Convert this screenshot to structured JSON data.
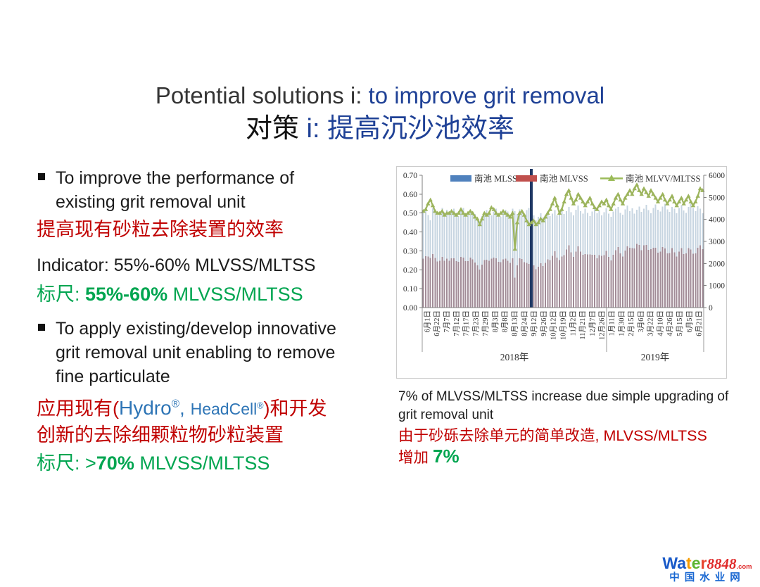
{
  "colors": {
    "title_blue": "#1f4196",
    "text_red": "#C00000",
    "text_green": "#00A550",
    "brand_blue": "#2E75B6"
  },
  "slide": {
    "title_en_dark": "Potential solutions i: ",
    "title_en_blue": "to improve grit removal",
    "title_cn_dark": "对策 ",
    "title_cn_blue": "i: 提高沉沙池效率"
  },
  "left_column": {
    "bullet1": "To improve the performance of\nexisting grit removal unit",
    "red1": "提高现有砂粒去除装置的效率",
    "indicator": "Indicator: 55%-60% MLVSS/MLTSS",
    "scale1": {
      "prefix": "标尺: ",
      "bold": "55%-60%",
      "suffix": " MLVSS/MLTSS"
    },
    "bullet2": "To apply existing/develop innovative\ngrit removal unit enabling to remove\nfine particulate",
    "red2": {
      "pre": "应用现有(",
      "hydro": "Hydro",
      "hydro_reg": "®",
      "comma": ", ",
      "headcell": "HeadCell",
      "headcell_reg": "®",
      "post": ")和开发",
      "line2": "创新的去除细颗粒物砂粒装置"
    },
    "scale2": {
      "prefix": "标尺: >",
      "bold": "70%",
      "suffix": " MLVSS/MLTSS"
    }
  },
  "caption": {
    "en": "7% of MLVSS/MLTSS increase due simple upgrading of\ngrit removal unit",
    "cn_line1": "由于砂砾去除单元的简单改造, MLVSS/MLTSS",
    "cn_line2_pre": "增加 ",
    "cn_line2_green": "7%"
  },
  "logo": {
    "letters": [
      [
        "W",
        "#1859c8"
      ],
      [
        "a",
        "#1859c8"
      ],
      [
        "t",
        "#f59b00"
      ],
      [
        "e",
        "#5cb531"
      ],
      [
        "r",
        "#e8412c"
      ]
    ],
    "number": "8848",
    "dotcom": ".com",
    "cn": "中国水业网",
    "cn_color": "#1766d1"
  },
  "chart_data": {
    "type": "bar+line",
    "legend": [
      {
        "label": "南池 MLSS",
        "type": "bar",
        "color": "#4F81BD"
      },
      {
        "label": "南池 MLVSS",
        "type": "bar",
        "color": "#C0504D"
      },
      {
        "label": "南池 MLVV/MLTSS",
        "type": "line",
        "color": "#9BBB59"
      }
    ],
    "left_axis": {
      "min": 0,
      "max": 0.7,
      "ticks": [
        "0.00",
        "0.10",
        "0.20",
        "0.30",
        "0.40",
        "0.50",
        "0.60",
        "0.70"
      ]
    },
    "right_axis": {
      "min": 0,
      "max": 6000,
      "ticks": [
        "0",
        "1000",
        "2000",
        "3000",
        "4000",
        "5000",
        "6000"
      ]
    },
    "x_tick_labels": [
      "6月1日",
      "6月22日",
      "7月7日",
      "7月12日",
      "7月17日",
      "7月23日",
      "7月29日",
      "8月3日",
      "8月8日",
      "8月13日",
      "8月24日",
      "9月12日",
      "9月26日",
      "10月12日",
      "10月19日",
      "11月2日",
      "11月21日",
      "12月7日",
      "12月26日",
      "1月11日",
      "1月30日",
      "2月15日",
      "3月6日",
      "3月22日",
      "4月10日",
      "4月26日",
      "5月15日",
      "6月5日",
      "6月21日"
    ],
    "year_groups": [
      {
        "label": "2018年",
        "from_label": 0,
        "to_label": 18
      },
      {
        "label": "2019年",
        "from_label": 19,
        "to_label": 28
      }
    ],
    "divider_bar_index": 46,
    "divider_color": "#1F3864",
    "bar_colors": {
      "mlss": "#c7d5e1",
      "mlvss": "#a18b97"
    },
    "line_color": "#9CB45C",
    "series": {
      "mlss": [
        4350,
        4480,
        4200,
        3950,
        4500,
        4420,
        4180,
        4260,
        4510,
        4330,
        4440,
        4240,
        4390,
        4480,
        4300,
        4150,
        4420,
        4520,
        4280,
        4190,
        4460,
        4350,
        4240,
        4080,
        3920,
        4150,
        4310,
        4420,
        4260,
        4180,
        4350,
        4490,
        4230,
        4120,
        4300,
        4440,
        4350,
        4230,
        4480,
        4380,
        4250,
        4460,
        4320,
        4200,
        4420,
        4510,
        4050,
        4180,
        3950,
        4120,
        4280,
        4080,
        4220,
        4350,
        4150,
        4260,
        4420,
        4180,
        4300,
        4460,
        4240,
        4380,
        4560,
        4320,
        4180,
        4440,
        4620,
        4380,
        4260,
        4480,
        4300,
        4150,
        4360,
        4520,
        4280,
        4400,
        4180,
        4320,
        4500,
        4260,
        4120,
        4350,
        4480,
        4560,
        4300,
        4220,
        4460,
        4620,
        4380,
        4500,
        4260,
        4440,
        4580,
        4340,
        4480,
        4660,
        4420,
        4280,
        4520,
        4680,
        4440,
        4360,
        4580,
        4700,
        4460,
        4340,
        4560,
        4480,
        4280,
        4520,
        4640,
        4400,
        4300,
        4560,
        4700,
        4520,
        4380,
        4600,
        4480,
        4280
      ],
      "mlvss": [
        2220,
        2330,
        2310,
        2250,
        2430,
        2250,
        2090,
        2130,
        2300,
        2120,
        2220,
        2120,
        2240,
        2240,
        2110,
        2080,
        2300,
        2260,
        2100,
        2100,
        2270,
        2180,
        2040,
        1920,
        1720,
        1950,
        2160,
        2170,
        2130,
        2220,
        2260,
        2240,
        2070,
        2060,
        2190,
        2220,
        2130,
        2030,
        2240,
        1360,
        1910,
        2230,
        2200,
        2060,
        2030,
        1980,
        1820,
        1920,
        1740,
        1850,
        2010,
        1880,
        2030,
        2180,
        2160,
        2340,
        2560,
        2260,
        2150,
        2320,
        2370,
        2630,
        2830,
        2510,
        2300,
        2530,
        2770,
        2540,
        2390,
        2420,
        2410,
        2410,
        2400,
        2400,
        2230,
        2380,
        2340,
        2380,
        2570,
        2300,
        2140,
        2390,
        2600,
        2740,
        2450,
        2320,
        2590,
        2770,
        2720,
        2700,
        2680,
        2890,
        2840,
        2600,
        2820,
        2840,
        2610,
        2650,
        2710,
        2710,
        2490,
        2530,
        2750,
        2680,
        2450,
        2470,
        2690,
        2510,
        2310,
        2530,
        2690,
        2420,
        2450,
        2690,
        2630,
        2440,
        2450,
        2710,
        2820,
        2650
      ],
      "ratio": [
        0.51,
        0.52,
        0.55,
        0.57,
        0.54,
        0.51,
        0.5,
        0.5,
        0.51,
        0.49,
        0.5,
        0.5,
        0.51,
        0.5,
        0.49,
        0.5,
        0.52,
        0.5,
        0.49,
        0.5,
        0.51,
        0.5,
        0.48,
        0.47,
        0.44,
        0.47,
        0.5,
        0.49,
        0.5,
        0.53,
        0.52,
        0.5,
        0.49,
        0.5,
        0.51,
        0.5,
        0.49,
        0.48,
        0.5,
        0.31,
        0.45,
        0.5,
        0.51,
        0.49,
        0.46,
        0.44,
        0.45,
        0.46,
        0.44,
        0.45,
        0.47,
        0.46,
        0.48,
        0.5,
        0.52,
        0.55,
        0.58,
        0.54,
        0.5,
        0.52,
        0.56,
        0.6,
        0.62,
        0.58,
        0.55,
        0.57,
        0.6,
        0.58,
        0.56,
        0.54,
        0.56,
        0.58,
        0.55,
        0.53,
        0.52,
        0.54,
        0.56,
        0.55,
        0.57,
        0.54,
        0.52,
        0.55,
        0.58,
        0.6,
        0.57,
        0.55,
        0.58,
        0.6,
        0.62,
        0.6,
        0.63,
        0.65,
        0.62,
        0.6,
        0.63,
        0.61,
        0.59,
        0.62,
        0.6,
        0.58,
        0.56,
        0.58,
        0.6,
        0.57,
        0.55,
        0.57,
        0.59,
        0.56,
        0.54,
        0.56,
        0.58,
        0.55,
        0.57,
        0.59,
        0.56,
        0.54,
        0.56,
        0.59,
        0.63,
        0.62
      ]
    }
  }
}
